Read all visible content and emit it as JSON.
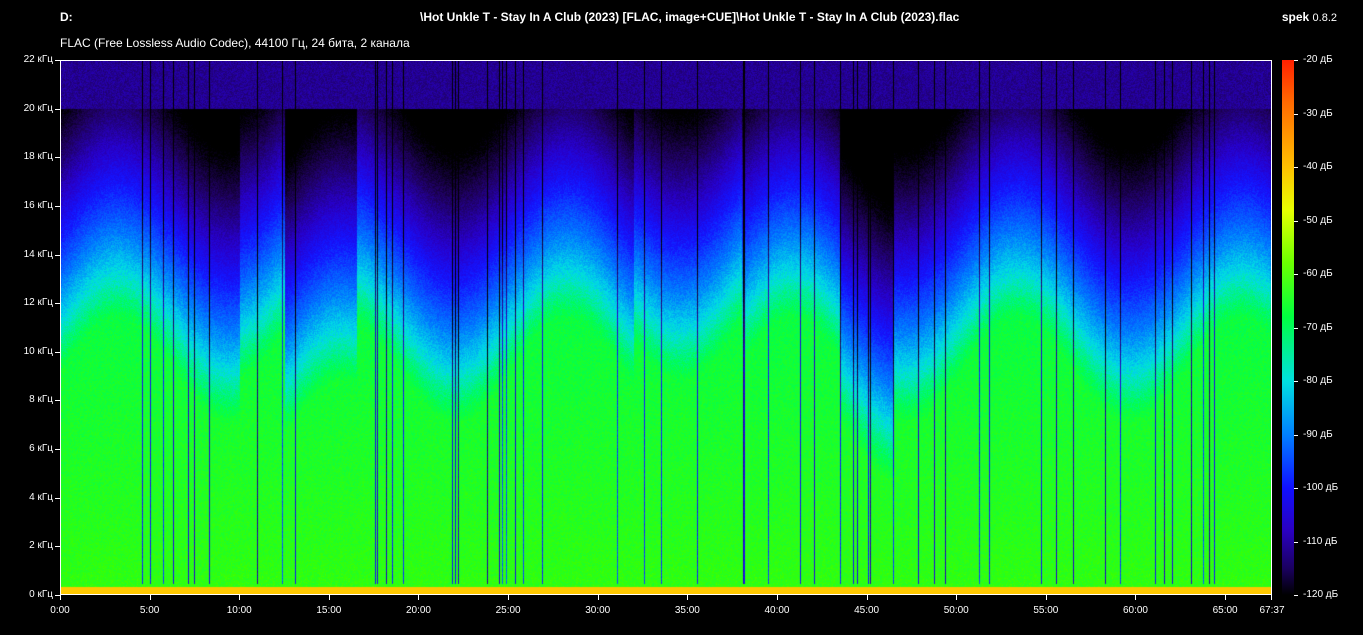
{
  "header": {
    "drive": "D:",
    "path": "\\Hot Unkle T - Stay In A Club (2023) [FLAC, image+CUE]\\Hot Unkle T - Stay In A Club (2023).flac",
    "app_name": "spek",
    "app_version": "0.8.2"
  },
  "info": "FLAC (Free Lossless Audio Codec), 44100 Гц, 24 бита, 2 канала",
  "chart_data": {
    "type": "heatmap",
    "x_ticks": [
      "0:00",
      "5:00",
      "10:00",
      "15:00",
      "20:00",
      "25:00",
      "30:00",
      "35:00",
      "40:00",
      "45:00",
      "50:00",
      "55:00",
      "60:00",
      "65:00",
      "67:37"
    ],
    "x_tick_minutes": [
      0,
      5,
      10,
      15,
      20,
      25,
      30,
      35,
      40,
      45,
      50,
      55,
      60,
      65,
      67.6167
    ],
    "y_ticks": [
      "0 кГц",
      "2 кГц",
      "4 кГц",
      "6 кГц",
      "8 кГц",
      "10 кГц",
      "12 кГц",
      "14 кГц",
      "16 кГц",
      "18 кГц",
      "20 кГц",
      "22 кГц"
    ],
    "y_tick_khz": [
      0,
      2,
      4,
      6,
      8,
      10,
      12,
      14,
      16,
      18,
      20,
      22
    ],
    "x_range_minutes": [
      0,
      67.6167
    ],
    "y_range_khz": [
      0,
      22
    ],
    "colorbar_labels": [
      "-20 дБ",
      "-30 дБ",
      "-40 дБ",
      "-50 дБ",
      "-60 дБ",
      "-70 дБ",
      "-80 дБ",
      "-90 дБ",
      "-100 дБ",
      "-110 дБ",
      "-120 дБ"
    ],
    "colorbar_db": [
      -20,
      -30,
      -40,
      -50,
      -60,
      -70,
      -80,
      -90,
      -100,
      -110,
      -120
    ],
    "db_range": [
      -120,
      -20
    ]
  }
}
